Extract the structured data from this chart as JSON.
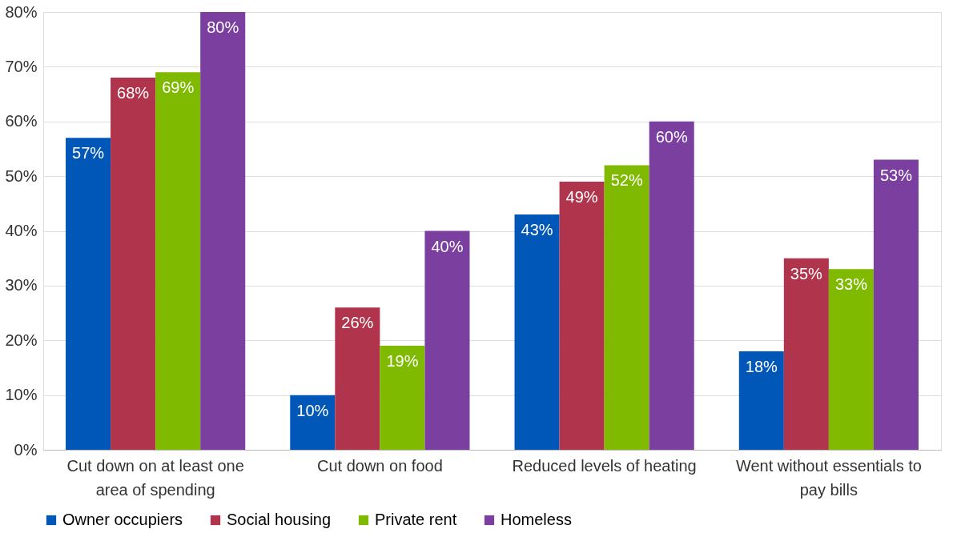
{
  "chart_data": {
    "type": "bar",
    "categories": [
      "Cut down on at least one area of spending",
      "Cut down on food",
      "Reduced levels of heating",
      "Went without essentials to pay bills"
    ],
    "series": [
      {
        "name": "Owner occupiers",
        "color": "#0057b8",
        "values": [
          57,
          10,
          43,
          18
        ],
        "value_labels": [
          "57%",
          "10%",
          "43%",
          "18%"
        ]
      },
      {
        "name": "Social housing",
        "color": "#b0344c",
        "values": [
          68,
          26,
          49,
          35
        ],
        "value_labels": [
          "68%",
          "26%",
          "49%",
          "35%"
        ]
      },
      {
        "name": "Private rent",
        "color": "#7fba00",
        "values": [
          69,
          19,
          52,
          33
        ],
        "value_labels": [
          "69%",
          "19%",
          "52%",
          "33%"
        ]
      },
      {
        "name": "Homeless",
        "color": "#7b3fa0",
        "values": [
          80,
          40,
          60,
          53
        ],
        "value_labels": [
          "80%",
          "40%",
          "60%",
          "53%"
        ]
      }
    ],
    "ylim": [
      0,
      80
    ],
    "yticks": [
      {
        "value": 0,
        "label": "0%"
      },
      {
        "value": 10,
        "label": "10%"
      },
      {
        "value": 20,
        "label": "20%"
      },
      {
        "value": 30,
        "label": "30%"
      },
      {
        "value": 40,
        "label": "40%"
      },
      {
        "value": 50,
        "label": "50%"
      },
      {
        "value": 60,
        "label": "60%"
      },
      {
        "value": 70,
        "label": "70%"
      },
      {
        "value": 80,
        "label": "80%"
      }
    ],
    "grid": "y",
    "legend": "bottom"
  }
}
